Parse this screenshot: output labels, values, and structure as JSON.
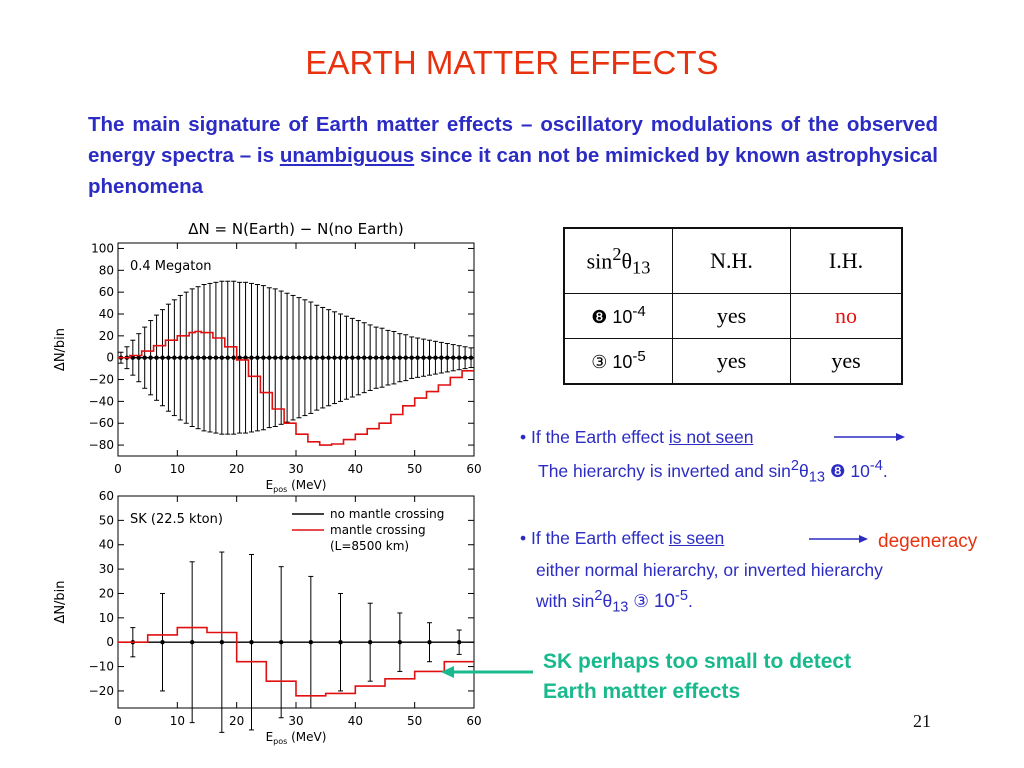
{
  "slide": {
    "title": "EARTH MATTER EFFECTS",
    "intro_before": "The main signature of Earth matter effects – oscillatory modulations of the observed energy spectra – is ",
    "intro_underlined": "unambiguous",
    "intro_after": " since it can not be mimicked by known astrophysical phenomena",
    "page_number": "21"
  },
  "table": {
    "headers": {
      "param_base": "sin",
      "param_sup": "2",
      "param_theta": "θ",
      "param_sub": "13",
      "nh": "N.H.",
      "ih": "I.H."
    },
    "rows": [
      {
        "symbol": "❽",
        "value": " 10",
        "exponent": "-4",
        "nh": "yes",
        "ih": "no"
      },
      {
        "symbol": "③",
        "value": "  10",
        "exponent": "-5",
        "nh": "yes",
        "ih": "yes"
      }
    ]
  },
  "bullets": {
    "b1_prefix": "• If the Earth effect ",
    "b1_underlined": "is not seen",
    "b1_line2_prefix": "The hierarchy is inverted and sin",
    "b1_sup": "2",
    "b1_theta": "θ",
    "b1_sub": "13",
    "b1_symbol": " ❽ ",
    "b1_value": " 10",
    "b1_exp": "-4",
    "b1_end": ".",
    "b2_prefix": "• If the Earth effect ",
    "b2_underlined": "is  seen",
    "b2_result": "degeneracy",
    "b2_line2": "either  normal hierarchy,  or  inverted hierarchy",
    "b2_line3_prefix": "with sin",
    "b2_sup": "2",
    "b2_theta": "θ",
    "b2_sub": "13",
    "b2_symbol": " ③  ",
    "b2_value": "10",
    "b2_exp": "-5",
    "b2_end": ".",
    "sk_note_line1": "SK perhaps too small to detect",
    "sk_note_line2": "Earth matter effects"
  },
  "colors": {
    "title": "#e8320f",
    "text": "#2c2cc4",
    "highlight": "#19b98d",
    "plot_red": "#e01010",
    "axis": "#000000"
  },
  "chart_data": [
    {
      "type": "line",
      "title": "ΔN = N(Earth) − N(no Earth)",
      "annotation": "0.4 Megaton",
      "xlabel_main": "E",
      "xlabel_sub": "pos",
      "xlabel_unit": " (MeV)",
      "ylabel": "ΔN/bin",
      "xlim": [
        0,
        60
      ],
      "ylim": [
        -90,
        105
      ],
      "xticks": [
        0,
        10,
        20,
        30,
        40,
        50,
        60
      ],
      "xtick_labels": [
        "0",
        "10",
        "20",
        "30",
        "40",
        "50",
        "60"
      ],
      "yticks": [
        100,
        80,
        60,
        40,
        20,
        0,
        -20,
        -40,
        -60,
        -80
      ],
      "ytick_labels": [
        "100",
        "80",
        "60",
        "40",
        "20",
        "0",
        "−20",
        "−40",
        "−60",
        "−80"
      ],
      "series": [
        {
          "style": "red-step",
          "x": [
            0,
            2,
            4,
            6,
            8,
            10,
            12,
            13,
            14,
            16,
            18,
            20,
            22,
            24,
            26,
            28,
            30,
            32,
            34,
            36,
            38,
            40,
            42,
            44,
            46,
            48,
            50,
            52,
            54,
            56,
            58,
            60
          ],
          "y": [
            0,
            2,
            6,
            11,
            16,
            20,
            23,
            24,
            23,
            18,
            10,
            -2,
            -17,
            -32,
            -47,
            -60,
            -70,
            -77,
            -80,
            -79,
            -75,
            -70,
            -65,
            -60,
            -52,
            -44,
            -37,
            -31,
            -25,
            -18,
            -12,
            -8
          ]
        },
        {
          "style": "black-errorbars",
          "x": [
            0.5,
            1.5,
            2.5,
            3.5,
            4.5,
            5.5,
            6.5,
            7.5,
            8.5,
            9.5,
            10.5,
            11.5,
            12.5,
            13.5,
            14.5,
            15.5,
            16.5,
            17.5,
            18.5,
            19.5,
            20.5,
            21.5,
            22.5,
            23.5,
            24.5,
            25.5,
            26.5,
            27.5,
            28.5,
            29.5,
            30.5,
            31.5,
            32.5,
            33.5,
            34.5,
            35.5,
            36.5,
            37.5,
            38.5,
            39.5,
            40.5,
            41.5,
            42.5,
            43.5,
            44.5,
            45.5,
            46.5,
            47.5,
            48.5,
            49.5,
            50.5,
            51.5,
            52.5,
            53.5,
            54.5,
            55.5,
            56.5,
            57.5,
            58.5,
            59.5
          ],
          "y": [
            0,
            0,
            0,
            0,
            0,
            0,
            0,
            0,
            0,
            0,
            0,
            0,
            0,
            0,
            0,
            0,
            0,
            0,
            0,
            0,
            0,
            0,
            0,
            0,
            0,
            0,
            0,
            0,
            0,
            0,
            0,
            0,
            0,
            0,
            0,
            0,
            0,
            0,
            0,
            0,
            0,
            0,
            0,
            0,
            0,
            0,
            0,
            0,
            0,
            0,
            0,
            0,
            0,
            0,
            0,
            0,
            0,
            0,
            0,
            0
          ],
          "err": [
            5,
            10,
            16,
            22,
            28,
            34,
            39,
            44,
            49,
            53,
            57,
            60,
            63,
            65,
            67,
            68,
            69,
            70,
            70,
            70,
            69,
            69,
            68,
            67,
            66,
            64,
            63,
            61,
            59,
            57,
            55,
            53,
            51,
            48,
            46,
            44,
            42,
            40,
            38,
            36,
            34,
            32,
            30,
            28,
            27,
            25,
            24,
            22,
            21,
            19,
            18,
            17,
            16,
            15,
            14,
            13,
            12,
            11,
            10,
            9
          ]
        }
      ]
    },
    {
      "type": "line",
      "annotation": "SK (22.5 kton)",
      "xlabel_main": "E",
      "xlabel_sub": "pos",
      "xlabel_unit": " (MeV)",
      "ylabel": "ΔN/bin",
      "xlim": [
        0,
        60
      ],
      "ylim": [
        -27,
        60
      ],
      "xticks": [
        0,
        10,
        20,
        30,
        40,
        50,
        60
      ],
      "xtick_labels": [
        "0",
        "10",
        "20",
        "30",
        "40",
        "50",
        "60"
      ],
      "yticks": [
        60,
        50,
        40,
        30,
        20,
        10,
        0,
        -10,
        -20
      ],
      "ytick_labels": [
        "60",
        "50",
        "40",
        "30",
        "20",
        "10",
        "0",
        "−10",
        "−20"
      ],
      "legend": [
        {
          "label": "no mantle crossing",
          "style": "black"
        },
        {
          "label": "mantle crossing",
          "style": "red"
        },
        {
          "label": "(L=8500 km)",
          "style": "none"
        }
      ],
      "series": [
        {
          "style": "red-step",
          "x": [
            0,
            5,
            10,
            15,
            20,
            25,
            30,
            35,
            40,
            45,
            50,
            55,
            60
          ],
          "y": [
            0,
            3,
            6,
            4,
            -8,
            -16,
            -22,
            -21,
            -18,
            -15,
            -12,
            -8,
            -2
          ]
        },
        {
          "style": "black-errorbars",
          "x": [
            2.5,
            7.5,
            12.5,
            17.5,
            22.5,
            27.5,
            32.5,
            37.5,
            42.5,
            47.5,
            52.5,
            57.5
          ],
          "y": [
            0,
            0,
            0,
            0,
            0,
            0,
            0,
            0,
            0,
            0,
            0,
            0
          ],
          "err": [
            6,
            20,
            33,
            37,
            36,
            31,
            27,
            20,
            16,
            12,
            8,
            5
          ]
        }
      ]
    }
  ]
}
